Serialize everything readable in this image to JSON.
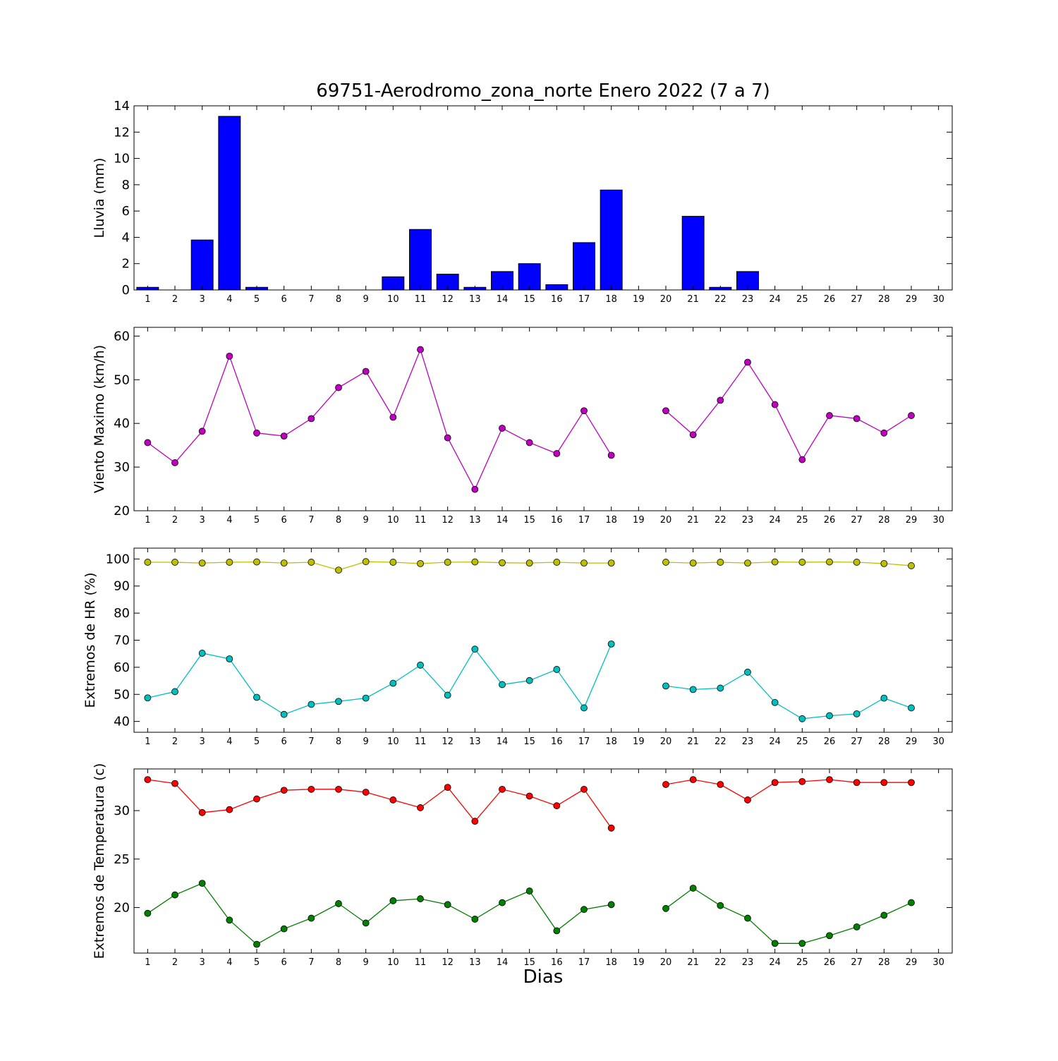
{
  "title": "69751-Aerodromo_zona_norte Enero 2022  (7 a 7)",
  "xlabel": "Dias",
  "chart_data": [
    {
      "type": "bar",
      "ylabel": "Lluvia (mm)",
      "ylim": [
        0,
        14
      ],
      "yticks": [
        0,
        2,
        4,
        6,
        8,
        10,
        12,
        14
      ],
      "xlim": [
        0.5,
        30.5
      ],
      "xticks": [
        1,
        2,
        3,
        4,
        5,
        6,
        7,
        8,
        9,
        10,
        11,
        12,
        13,
        14,
        15,
        16,
        17,
        18,
        19,
        20,
        21,
        22,
        23,
        24,
        25,
        26,
        27,
        28,
        29,
        30
      ],
      "series": [
        {
          "color": "#0000ff",
          "values": [
            0.2,
            0,
            3.8,
            13.2,
            0.2,
            0,
            0,
            0,
            0,
            1.0,
            4.6,
            1.2,
            0.2,
            1.4,
            2.0,
            0.4,
            3.6,
            7.6,
            0,
            0,
            5.6,
            0.2,
            1.4,
            0,
            0,
            0,
            0,
            0,
            0,
            0
          ]
        }
      ]
    },
    {
      "type": "line",
      "ylabel": "Viento Maximo (km/h)",
      "ylim": [
        20,
        62
      ],
      "yticks": [
        20,
        30,
        40,
        50,
        60
      ],
      "xlim": [
        0.5,
        30.5
      ],
      "xticks": [
        1,
        2,
        3,
        4,
        5,
        6,
        7,
        8,
        9,
        10,
        11,
        12,
        13,
        14,
        15,
        16,
        17,
        18,
        19,
        20,
        21,
        22,
        23,
        24,
        25,
        26,
        27,
        28,
        29,
        30
      ],
      "series": [
        {
          "color": "#bf00bf",
          "values": [
            35.6,
            31.0,
            38.2,
            55.4,
            37.8,
            37.1,
            41.1,
            48.2,
            51.9,
            41.4,
            56.9,
            36.7,
            24.9,
            38.9,
            35.6,
            33.1,
            42.9,
            32.7,
            null,
            42.9,
            37.4,
            45.3,
            54.0,
            44.3,
            31.7,
            41.8,
            41.1,
            37.8,
            41.8,
            null
          ]
        }
      ]
    },
    {
      "type": "line",
      "ylabel": "Extremos de HR (%)",
      "ylim": [
        36,
        104
      ],
      "yticks": [
        40,
        50,
        60,
        70,
        80,
        90,
        100
      ],
      "xlim": [
        0.5,
        30.5
      ],
      "xticks": [
        1,
        2,
        3,
        4,
        5,
        6,
        7,
        8,
        9,
        10,
        11,
        12,
        13,
        14,
        15,
        16,
        17,
        18,
        19,
        20,
        21,
        22,
        23,
        24,
        25,
        26,
        27,
        28,
        29,
        30
      ],
      "series": [
        {
          "color": "#bfbf00",
          "values": [
            98.8,
            98.8,
            98.5,
            98.8,
            98.9,
            98.5,
            98.8,
            95.9,
            99.0,
            98.8,
            98.3,
            98.8,
            98.9,
            98.6,
            98.5,
            98.8,
            98.5,
            98.5,
            null,
            98.8,
            98.5,
            98.8,
            98.5,
            98.9,
            98.8,
            98.9,
            98.8,
            98.3,
            97.5,
            null
          ]
        },
        {
          "color": "#00bfbf",
          "values": [
            48.7,
            51.0,
            65.2,
            63.1,
            48.9,
            42.6,
            46.3,
            47.4,
            48.6,
            54.1,
            60.8,
            49.7,
            66.7,
            53.6,
            55.1,
            59.2,
            45.0,
            68.6,
            null,
            53.1,
            51.8,
            52.3,
            58.2,
            47.0,
            41.0,
            42.1,
            42.8,
            48.6,
            45.0,
            null
          ]
        }
      ]
    },
    {
      "type": "line",
      "ylabel": "Extremos de Temperatura (c)",
      "ylim": [
        15.3,
        34.3
      ],
      "yticks": [
        20,
        25,
        30
      ],
      "xlim": [
        0.5,
        30.5
      ],
      "xticks": [
        1,
        2,
        3,
        4,
        5,
        6,
        7,
        8,
        9,
        10,
        11,
        12,
        13,
        14,
        15,
        16,
        17,
        18,
        19,
        20,
        21,
        22,
        23,
        24,
        25,
        26,
        27,
        28,
        29,
        30
      ],
      "series": [
        {
          "color": "#ff0000",
          "values": [
            33.2,
            32.8,
            29.8,
            30.1,
            31.2,
            32.1,
            32.2,
            32.2,
            31.9,
            31.1,
            30.3,
            32.4,
            28.9,
            32.2,
            31.5,
            30.5,
            32.2,
            28.2,
            null,
            32.7,
            33.2,
            32.7,
            31.1,
            32.9,
            33.0,
            33.2,
            32.9,
            32.9,
            32.9,
            null
          ]
        },
        {
          "color": "#008000",
          "values": [
            19.4,
            21.3,
            22.5,
            18.7,
            16.2,
            17.8,
            18.9,
            20.4,
            18.4,
            20.7,
            20.9,
            20.3,
            18.8,
            20.5,
            21.7,
            17.6,
            19.8,
            20.3,
            null,
            19.9,
            22.0,
            20.2,
            18.9,
            16.3,
            16.3,
            17.1,
            18.0,
            19.2,
            20.5,
            null
          ]
        }
      ]
    }
  ]
}
